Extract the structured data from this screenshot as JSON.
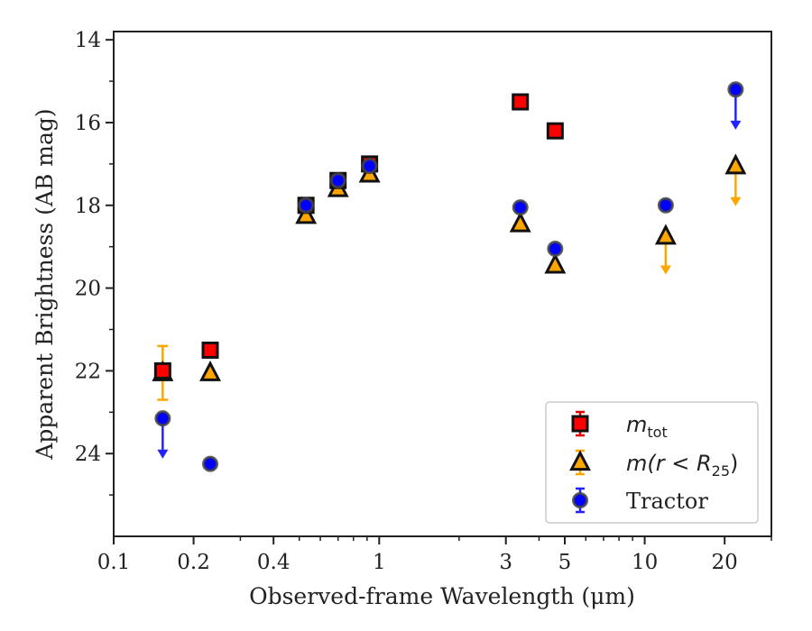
{
  "chart_data": {
    "type": "scatter",
    "xlabel": "Observed-frame Wavelength (μm)",
    "ylabel": "Apparent Brightness (AB mag)",
    "xscale": "log",
    "xlim": [
      0.1,
      30
    ],
    "ylim": [
      26.0,
      13.8
    ],
    "y_inverted": true,
    "x_ticks": [
      {
        "value": 0.1,
        "label": "0.1"
      },
      {
        "value": 0.2,
        "label": "0.2"
      },
      {
        "value": 0.4,
        "label": "0.4"
      },
      {
        "value": 1,
        "label": "1"
      },
      {
        "value": 3,
        "label": "3"
      },
      {
        "value": 5,
        "label": "5"
      },
      {
        "value": 10,
        "label": "10"
      },
      {
        "value": 20,
        "label": "20"
      }
    ],
    "y_ticks": [
      14,
      16,
      18,
      20,
      22,
      24
    ],
    "legend": {
      "position": "lower-right",
      "entries": [
        {
          "series": "m_tot",
          "text": "m",
          "sub": "tot",
          "math": true
        },
        {
          "series": "m_r25",
          "text": "m(r < R",
          "sub": "25",
          "suffix": ")",
          "math": true
        },
        {
          "series": "tractor",
          "text": "Tractor",
          "math": false
        }
      ]
    },
    "series": [
      {
        "key": "m_tot",
        "marker": "square",
        "color": "#ff0000",
        "edge": "#111111",
        "errcolor": "#dd0000",
        "points": [
          {
            "x": 0.153,
            "y": 22.0
          },
          {
            "x": 0.231,
            "y": 21.5
          },
          {
            "x": 0.53,
            "y": 18.0
          },
          {
            "x": 0.7,
            "y": 17.4
          },
          {
            "x": 0.92,
            "y": 17.0
          },
          {
            "x": 3.4,
            "y": 15.5
          },
          {
            "x": 4.6,
            "y": 16.2
          }
        ]
      },
      {
        "key": "m_r25",
        "marker": "triangle",
        "color": "#ffa500",
        "edge": "#111111",
        "errcolor": "#ffa500",
        "points": [
          {
            "x": 0.153,
            "y": 22.05,
            "yerr": [
              21.4,
              22.7
            ]
          },
          {
            "x": 0.231,
            "y": 22.05
          },
          {
            "x": 0.53,
            "y": 18.25
          },
          {
            "x": 0.7,
            "y": 17.6
          },
          {
            "x": 0.92,
            "y": 17.25
          },
          {
            "x": 3.4,
            "y": 18.45
          },
          {
            "x": 4.6,
            "y": 19.45
          },
          {
            "x": 12.0,
            "y": 18.75,
            "upper_limit_to": 19.65
          },
          {
            "x": 22.0,
            "y": 17.05,
            "upper_limit_to": 18.0
          }
        ]
      },
      {
        "key": "tractor",
        "marker": "circle",
        "color": "#0000ff",
        "edge": "#444444",
        "errcolor": "#2222ff",
        "points": [
          {
            "x": 0.153,
            "y": 23.15,
            "upper_limit_to": 24.1
          },
          {
            "x": 0.231,
            "y": 24.25
          },
          {
            "x": 0.53,
            "y": 18.0
          },
          {
            "x": 0.7,
            "y": 17.4
          },
          {
            "x": 0.92,
            "y": 17.05
          },
          {
            "x": 3.4,
            "y": 18.05
          },
          {
            "x": 4.6,
            "y": 19.05
          },
          {
            "x": 12.0,
            "y": 18.0
          },
          {
            "x": 22.0,
            "y": 15.2,
            "upper_limit_to": 16.15
          }
        ]
      }
    ]
  }
}
